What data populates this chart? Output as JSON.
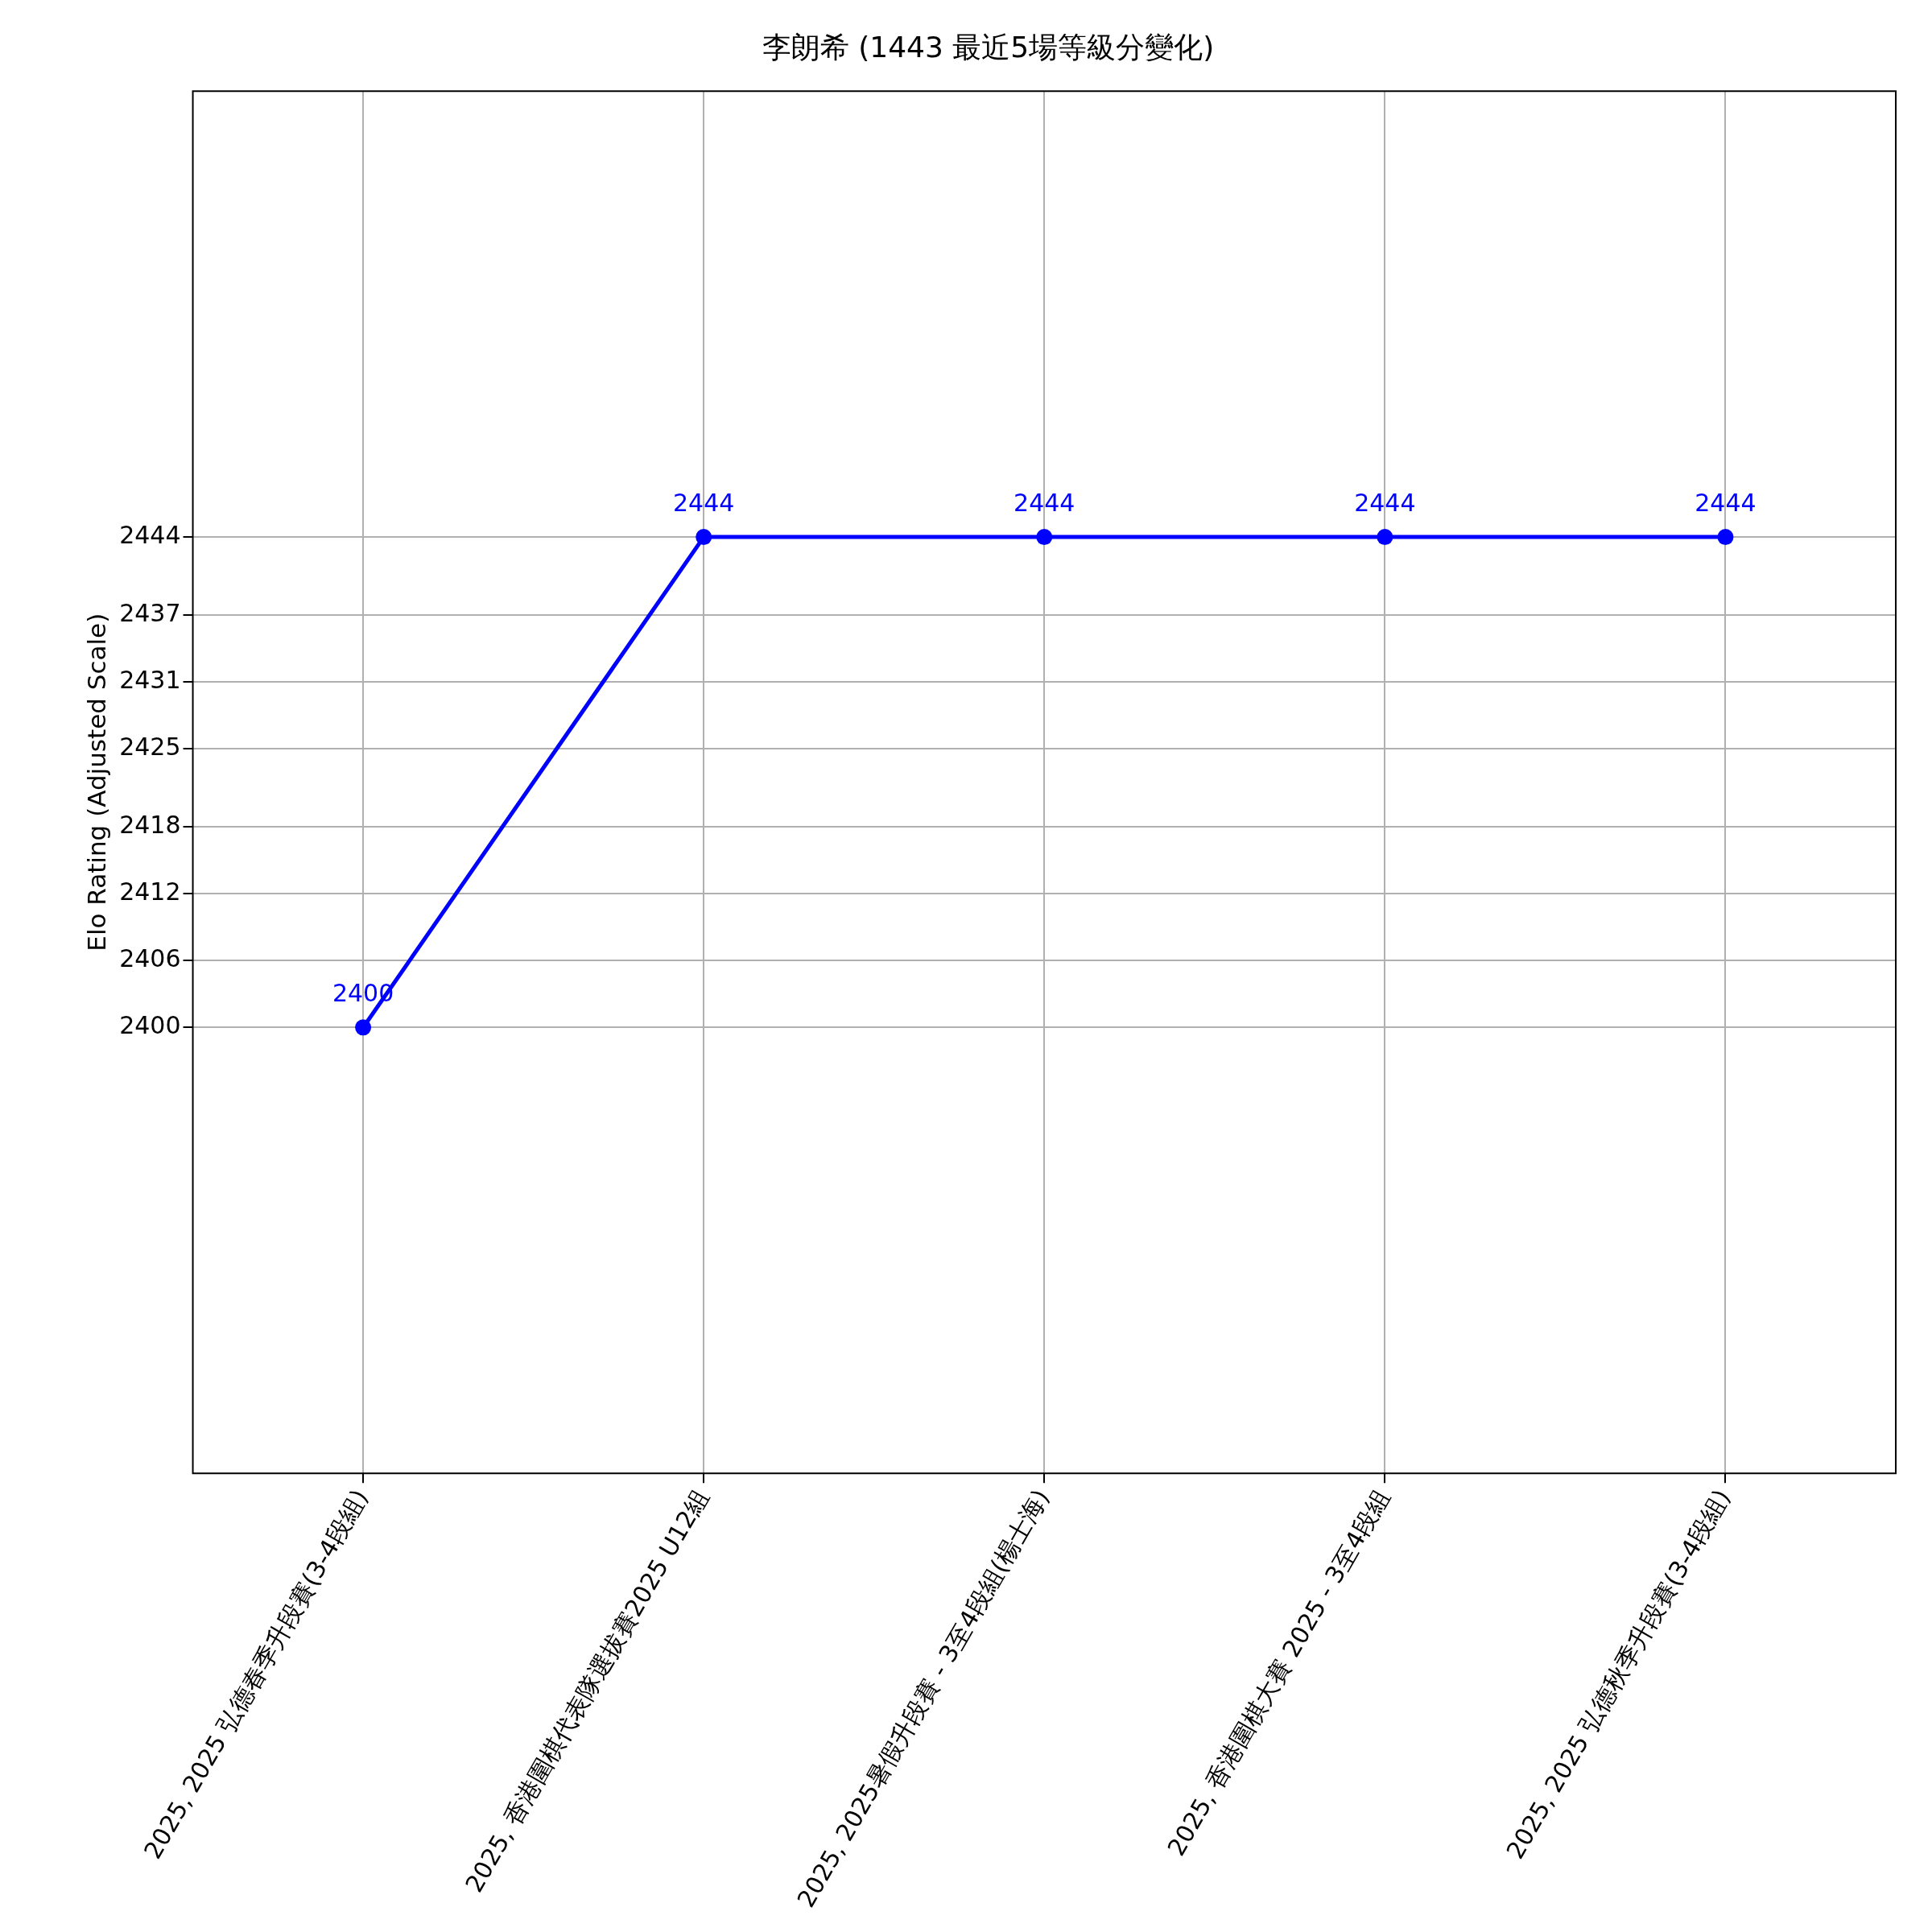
{
  "chart_data": {
    "type": "line",
    "title": "李朗希 (1443 最近5場等級分變化)",
    "ylabel": "Elo Rating (Adjusted Scale)",
    "categories": [
      "2025, 2025 弘德春季升段賽(3-4段組)",
      "2025, 香港圍棋代表隊選拔賽2025 U12組",
      "2025, 2025暑假升段賽 - 3至4段組(楊士海)",
      "2025, 香港圍棋大賽 2025 - 3至4段組",
      "2025, 2025 弘德秋季升段賽(3-4段組)"
    ],
    "series": [
      {
        "color": "#0000ff",
        "values": [
          2400,
          2444,
          2444,
          2444,
          2444
        ]
      }
    ],
    "ylim": [
      2360,
      2484
    ],
    "yticks": [
      2400,
      2406,
      2412,
      2418,
      2425,
      2431,
      2437,
      2444
    ],
    "grid": true,
    "legend": false,
    "marker": "circle",
    "line_style": "solid",
    "data_labels": true
  }
}
